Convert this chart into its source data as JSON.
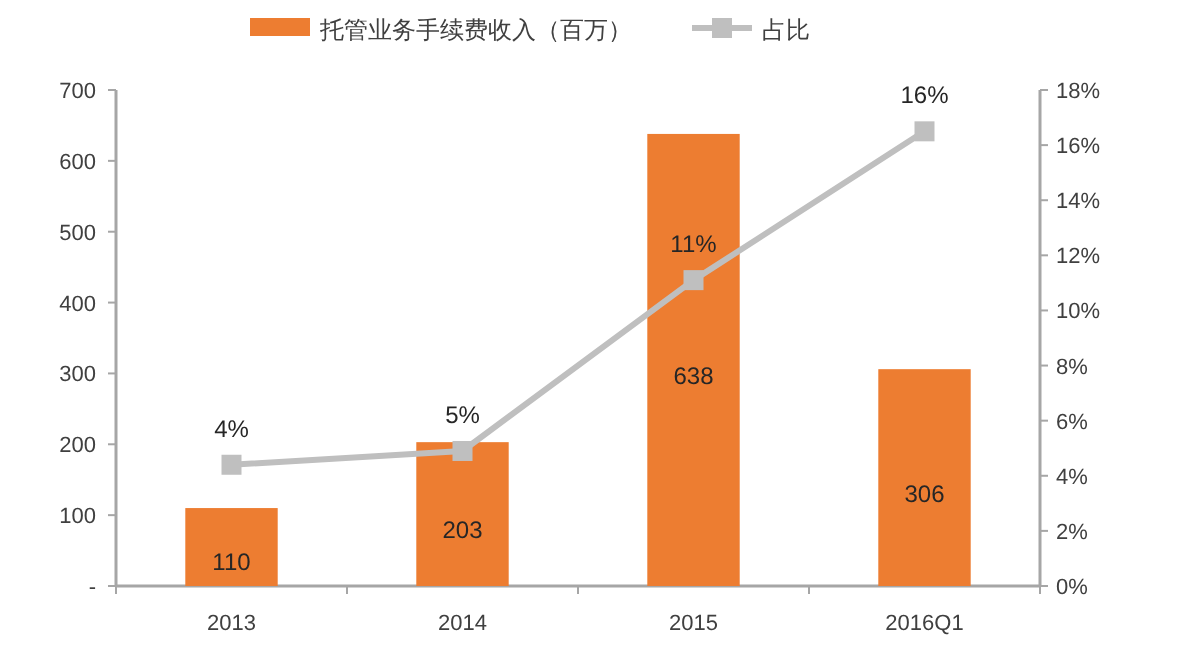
{
  "chart_data": {
    "type": "bar",
    "categories": [
      "2013",
      "2014",
      "2015",
      "2016Q1"
    ],
    "series": [
      {
        "name": "托管业务手续费收入（百万）",
        "color": "#ed7d31",
        "values": [
          110,
          203,
          638,
          306
        ],
        "data_labels": true
      },
      {
        "name": "占比",
        "type": "line",
        "axis": "y2",
        "color": "#bfbfbf",
        "marker": "square",
        "values": [
          4.4,
          4.9,
          11.1,
          16.5
        ],
        "value_labels": [
          "4%",
          "5%",
          "11%",
          "16%"
        ]
      }
    ],
    "ylim": [
      0,
      700
    ],
    "yticks": [
      {
        "value": 0,
        "label": "-"
      },
      100,
      200,
      300,
      400,
      500,
      600,
      700
    ],
    "y2lim": [
      0,
      18
    ],
    "y2ticks": [
      {
        "value": 0,
        "label": "0%"
      },
      {
        "value": 2,
        "label": "2%"
      },
      {
        "value": 4,
        "label": "4%"
      },
      {
        "value": 6,
        "label": "6%"
      },
      {
        "value": 8,
        "label": "8%"
      },
      {
        "value": 10,
        "label": "10%"
      },
      {
        "value": 12,
        "label": "12%"
      },
      {
        "value": 14,
        "label": "14%"
      },
      {
        "value": 16,
        "label": "16%"
      },
      {
        "value": 18,
        "label": "18%"
      }
    ],
    "grid": false,
    "legend": "top"
  }
}
